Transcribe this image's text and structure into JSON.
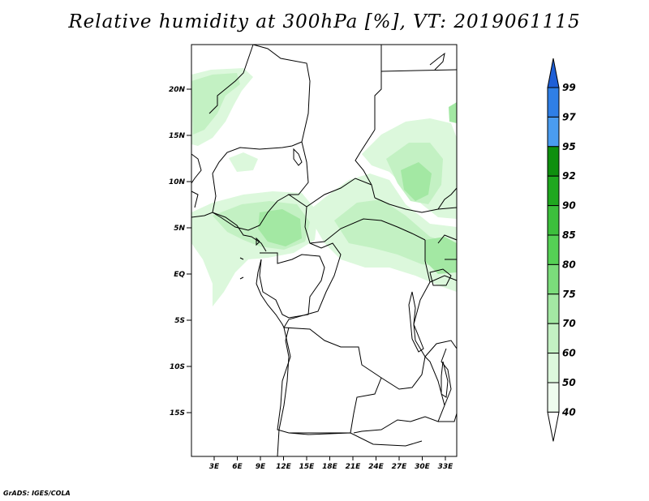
{
  "title": "Relative humidity at 300hPa [%], VT: 2019061115",
  "credit": "GrADS: IGES/COLA",
  "lat_labels": [
    "20N",
    "15N",
    "10N",
    "5N",
    "EQ",
    "5S",
    "10S",
    "15S"
  ],
  "lon_labels": [
    "3E",
    "6E",
    "9E",
    "12E",
    "15E",
    "18E",
    "21E",
    "24E",
    "27E",
    "30E",
    "33E"
  ],
  "colorbar": {
    "levels": [
      "99",
      "97",
      "95",
      "92",
      "90",
      "85",
      "80",
      "75",
      "70",
      "60",
      "50",
      "40"
    ],
    "colors": [
      "#1f5fd6",
      "#2f7fe6",
      "#4a9cf0",
      "#0e8f0e",
      "#1fa81f",
      "#3cbf3c",
      "#55d155",
      "#7bdc7b",
      "#a3e8a3",
      "#c3f1c3",
      "#dcf8dc",
      "#eefcee"
    ]
  },
  "humidity_colors": {
    "light": "#dcf8dc",
    "medium": "#c3f1c3",
    "dense": "#a3e8a3",
    "dark": "#7bdc7b"
  }
}
